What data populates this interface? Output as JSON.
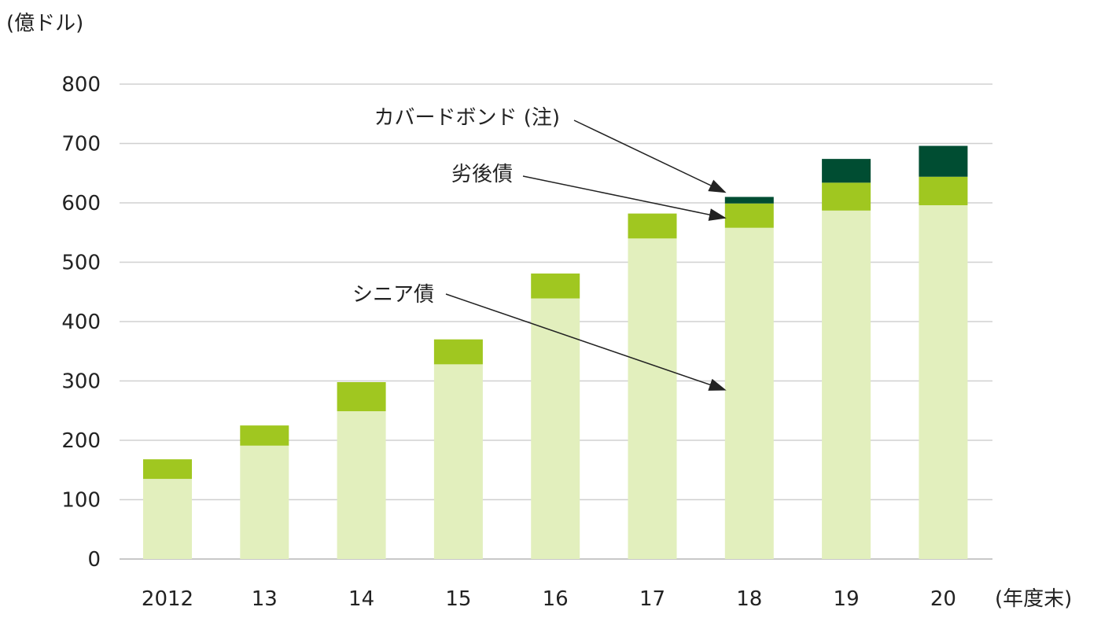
{
  "chart_data": {
    "type": "bar",
    "stacked": true,
    "ylabel": "(億ドル)",
    "xlabel": "(年度末)",
    "ylim": [
      0,
      800
    ],
    "yticks": [
      0,
      100,
      200,
      300,
      400,
      500,
      600,
      700,
      800
    ],
    "grid": true,
    "categories": [
      "2012",
      "13",
      "14",
      "15",
      "16",
      "17",
      "18",
      "19",
      "20"
    ],
    "series": [
      {
        "name": "シニア債",
        "color": "#e2efbd",
        "values": [
          135,
          191,
          249,
          328,
          439,
          540,
          558,
          587,
          596
        ]
      },
      {
        "name": "劣後債",
        "color": "#a0c720",
        "values": [
          33,
          34,
          49,
          42,
          42,
          42,
          41,
          47,
          48
        ]
      },
      {
        "name": "カバードボンド (注)",
        "color": "#004d32",
        "values": [
          0,
          0,
          0,
          0,
          0,
          0,
          11,
          40,
          52
        ]
      }
    ],
    "annotations": [
      {
        "series": 2,
        "label": "カバードボンド (注)",
        "points_to": "18"
      },
      {
        "series": 1,
        "label": "劣後債",
        "points_to": "18"
      },
      {
        "series": 0,
        "label": "シニア債",
        "points_to": "18"
      }
    ]
  }
}
